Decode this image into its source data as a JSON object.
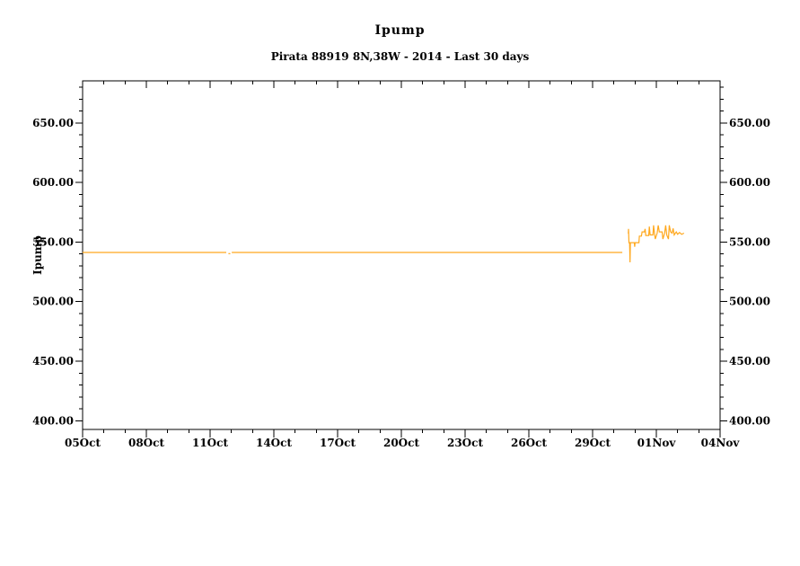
{
  "figure": {
    "background": "#ffffff",
    "axis_color": "#000000",
    "line_color": "#ffa81e"
  },
  "chart_data": {
    "type": "line",
    "title": "Ipump",
    "subtitle": "Pirata 88919 8N,38W - 2014 - Last 30 days",
    "ylabel": "Ipump",
    "xlabel": "",
    "grid": false,
    "legend": null,
    "x_axis": {
      "unit": "days since 05Oct2014 00:00",
      "range_days": [
        0,
        30
      ],
      "minor_step_days": 1,
      "major_ticks": [
        {
          "day": 0,
          "label": "05Oct"
        },
        {
          "day": 3,
          "label": "08Oct"
        },
        {
          "day": 6,
          "label": "11Oct"
        },
        {
          "day": 9,
          "label": "14Oct"
        },
        {
          "day": 12,
          "label": "17Oct"
        },
        {
          "day": 15,
          "label": "20Oct"
        },
        {
          "day": 18,
          "label": "23Oct"
        },
        {
          "day": 21,
          "label": "26Oct"
        },
        {
          "day": 24,
          "label": "29Oct"
        },
        {
          "day": 27,
          "label": "01Nov"
        },
        {
          "day": 30,
          "label": "04Nov"
        }
      ]
    },
    "y_axis": {
      "range": [
        392.7,
        685.3
      ],
      "minor_step": 10,
      "labels_on_right": true,
      "major_ticks": [
        {
          "value": 400,
          "label": "400.00"
        },
        {
          "value": 450,
          "label": "450.00"
        },
        {
          "value": 500,
          "label": "500.00"
        },
        {
          "value": 550,
          "label": "550.00"
        },
        {
          "value": 600,
          "label": "600.00"
        },
        {
          "value": 650,
          "label": "650.00"
        }
      ]
    },
    "series": [
      {
        "name": "Ipump",
        "color": "#ffa81e",
        "segments": [
          [
            [
              0,
              541.3
            ],
            [
              6.76,
              541.3
            ]
          ],
          [
            [
              6.86,
              540.3
            ],
            [
              6.95,
              540.3
            ]
          ],
          [
            [
              7.02,
              541.3
            ],
            [
              25.4,
              541.3
            ]
          ],
          [
            [
              25.68,
              557
            ],
            [
              25.69,
              561
            ],
            [
              25.71,
              549.5
            ],
            [
              25.74,
              549.5
            ],
            [
              25.76,
              533
            ],
            [
              25.78,
              549.5
            ],
            [
              25.96,
              549.5
            ],
            [
              25.98,
              546
            ],
            [
              26.0,
              549.5
            ],
            [
              26.18,
              549.5
            ],
            [
              26.2,
              555
            ],
            [
              26.3,
              555
            ],
            [
              26.33,
              558.5
            ],
            [
              26.44,
              558.5
            ],
            [
              26.47,
              561
            ],
            [
              26.5,
              555.5
            ],
            [
              26.64,
              555.5
            ],
            [
              26.67,
              563
            ],
            [
              26.71,
              556
            ],
            [
              26.84,
              556
            ],
            [
              26.87,
              564
            ],
            [
              26.91,
              557.5
            ],
            [
              26.95,
              552.5
            ],
            [
              27.04,
              557.5
            ],
            [
              27.09,
              564
            ],
            [
              27.14,
              558.5
            ],
            [
              27.27,
              558.5
            ],
            [
              27.31,
              552.5
            ],
            [
              27.39,
              557.5
            ],
            [
              27.44,
              564
            ],
            [
              27.49,
              556
            ],
            [
              27.57,
              552.5
            ],
            [
              27.61,
              564
            ],
            [
              27.67,
              558.5
            ],
            [
              27.74,
              557.5
            ],
            [
              27.79,
              561.5
            ],
            [
              27.84,
              556
            ],
            [
              27.94,
              558.5
            ],
            [
              28.0,
              556.5
            ],
            [
              28.09,
              558
            ],
            [
              28.19,
              556.5
            ],
            [
              28.3,
              557.5
            ]
          ]
        ]
      }
    ]
  }
}
